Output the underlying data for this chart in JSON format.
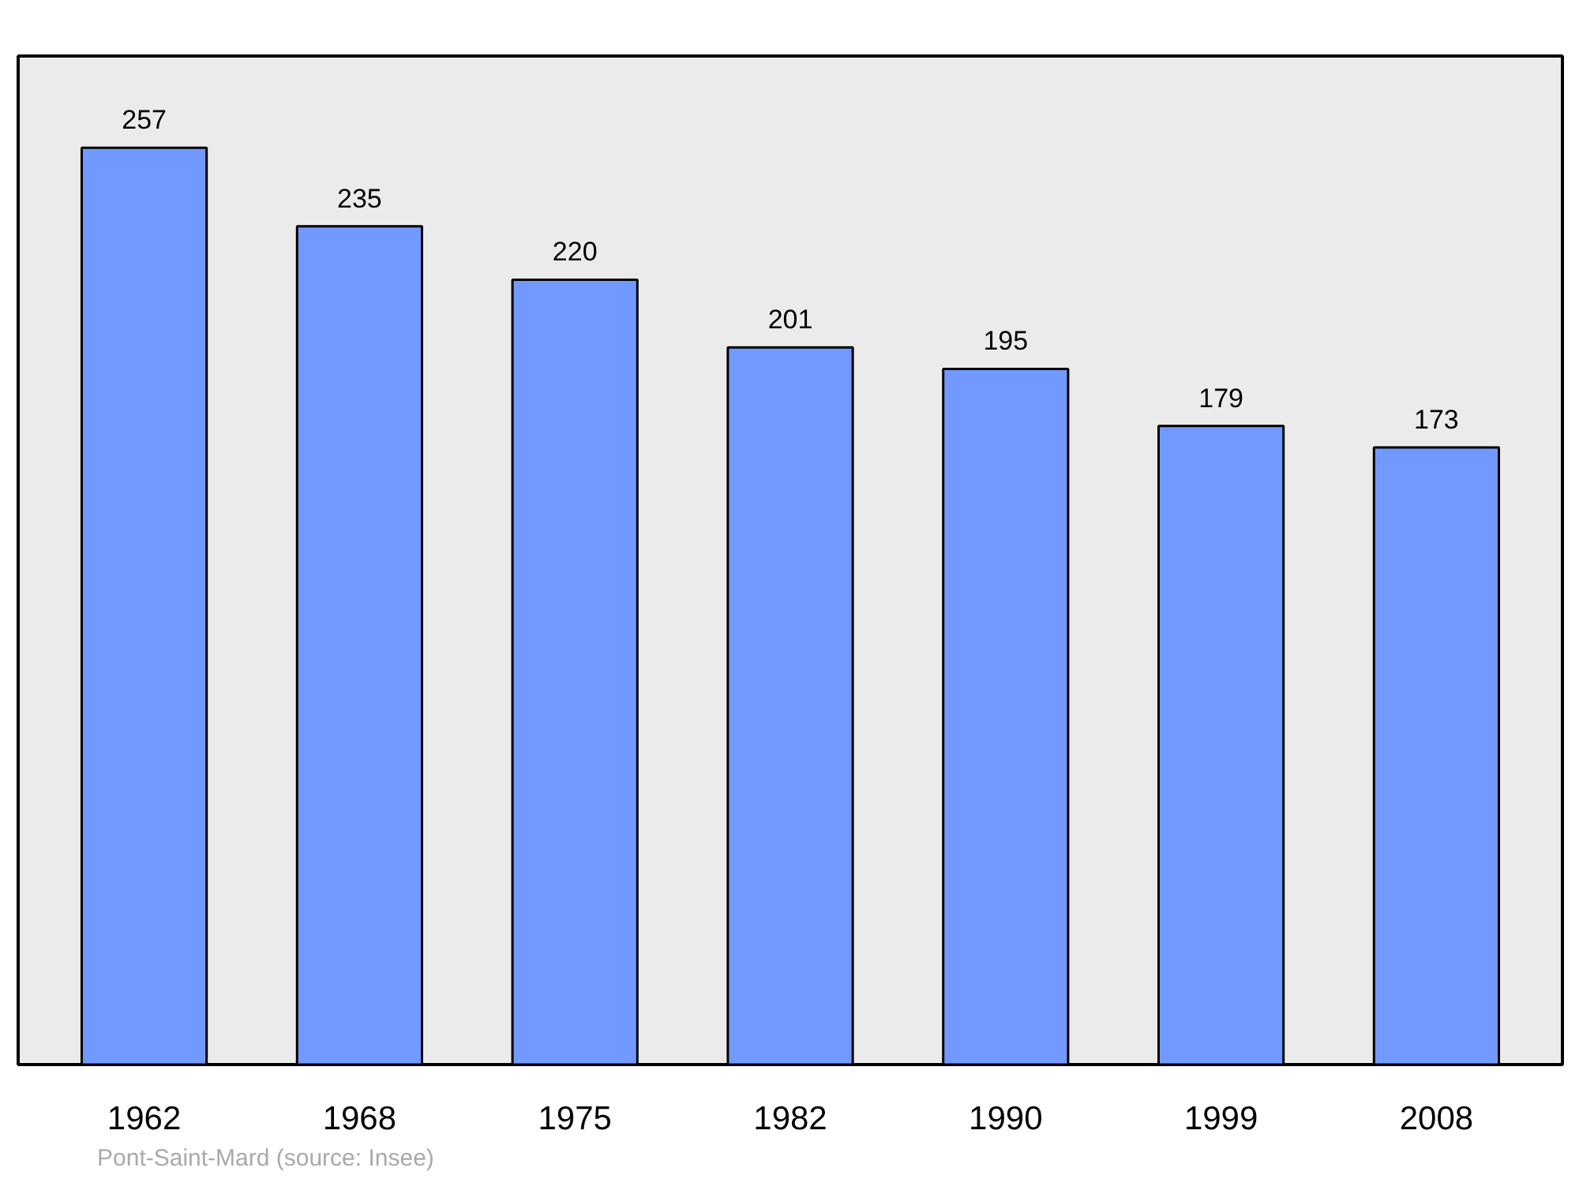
{
  "chart_data": {
    "type": "bar",
    "categories": [
      "1962",
      "1968",
      "1975",
      "1982",
      "1990",
      "1999",
      "2008"
    ],
    "values": [
      257,
      235,
      220,
      201,
      195,
      179,
      173
    ],
    "color": "#7299ff",
    "data_labels": true,
    "grid": false,
    "annotations": [
      "Pont-Saint-Mard    (source: Insee)"
    ]
  }
}
